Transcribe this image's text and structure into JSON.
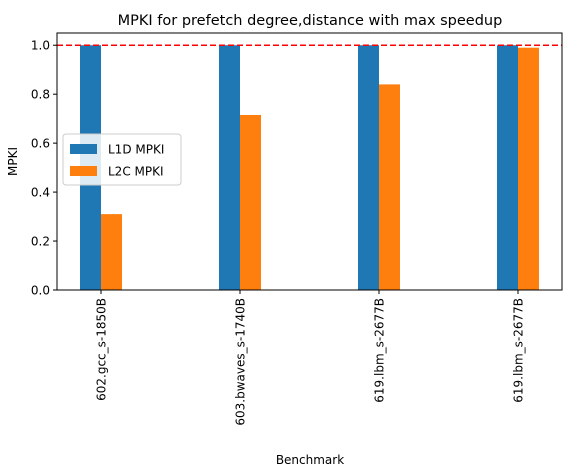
{
  "chart_data": {
    "type": "bar",
    "title": "MPKI for prefetch degree,distance with max speedup",
    "xlabel": "Benchmark",
    "ylabel": "MPKI",
    "categories": [
      "602.gcc_s-1850B",
      "603.bwaves_s-1740B",
      "619.lbm_s-2677B",
      "619.lbm_s-2677B"
    ],
    "series": [
      {
        "name": "L1D MPKI",
        "values": [
          1.0,
          1.0,
          1.0,
          1.0
        ],
        "color": "#1f77b4"
      },
      {
        "name": "L2C MPKI",
        "values": [
          0.31,
          0.715,
          0.84,
          0.99
        ],
        "color": "#ff7f0e"
      }
    ],
    "ylim": [
      0,
      1.05
    ],
    "yticks": [
      0.0,
      0.2,
      0.4,
      0.6,
      0.8,
      1.0
    ],
    "ytick_labels": [
      "0.0",
      "0.2",
      "0.4",
      "0.6",
      "0.8",
      "1.0"
    ],
    "reference_line": {
      "value": 1.0,
      "color": "#ff0000",
      "style": "dashed"
    },
    "legend_position": "center-left",
    "grid": false
  }
}
